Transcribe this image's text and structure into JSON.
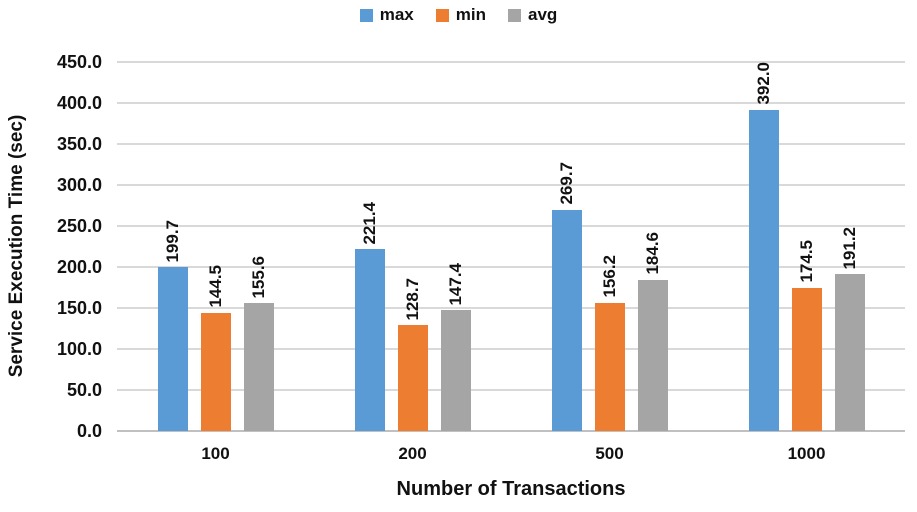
{
  "chart_data": {
    "type": "bar",
    "title": "",
    "xlabel": "Number of Transactions",
    "ylabel": "Service Execution Time (sec)",
    "categories": [
      "100",
      "200",
      "500",
      "1000"
    ],
    "series": [
      {
        "name": "max",
        "color": "#5B9BD5",
        "values": [
          199.7,
          221.4,
          269.7,
          392.0
        ]
      },
      {
        "name": "min",
        "color": "#ED7D31",
        "values": [
          144.5,
          128.7,
          156.2,
          174.5
        ]
      },
      {
        "name": "avg",
        "color": "#A5A5A5",
        "values": [
          155.6,
          147.4,
          184.6,
          191.2
        ]
      }
    ],
    "data_labels": [
      [
        "199.7",
        "221.4",
        "269.7",
        "392.0"
      ],
      [
        "144.5",
        "128.7",
        "156.2",
        "174.5"
      ],
      [
        "155.6",
        "147.4",
        "184.6",
        "191.2"
      ]
    ],
    "ylim": [
      0,
      450
    ],
    "ytick_step": 50,
    "ytick_labels": [
      "0.0",
      "50.0",
      "100.0",
      "150.0",
      "200.0",
      "250.0",
      "300.0",
      "350.0",
      "400.0",
      "450.0"
    ],
    "grid": true,
    "legend_position": "top",
    "colors": {
      "gridline": "#D9D9D9",
      "axis_line": "#C0C0C0",
      "text": "#111111"
    }
  }
}
